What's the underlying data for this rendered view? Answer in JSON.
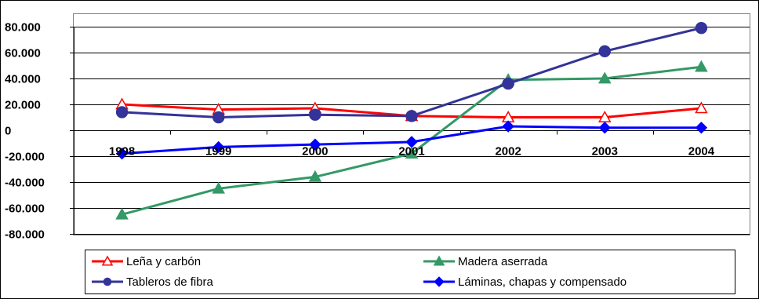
{
  "chart_data": {
    "type": "line",
    "title": "",
    "xlabel": "",
    "ylabel": "",
    "categories": [
      "1998",
      "1999",
      "2000",
      "2001",
      "2002",
      "2003",
      "2004"
    ],
    "ylim": [
      -80000,
      80000
    ],
    "y_ticks": [
      -80000,
      -60000,
      -40000,
      -20000,
      0,
      20000,
      40000,
      60000,
      80000
    ],
    "y_tick_labels": [
      "-80.000",
      "-60.000",
      "-40.000",
      "-20.000",
      "0",
      "20.000",
      "40.000",
      "60.000",
      "80.000"
    ],
    "grid": "horizontal",
    "legend_position": "bottom",
    "series": [
      {
        "name": "Leña y carbón",
        "color": "#ff0000",
        "marker": "triangle-open",
        "values": [
          20000,
          16000,
          17000,
          11000,
          10000,
          10000,
          17000
        ]
      },
      {
        "name": "Madera aserrada",
        "color": "#339966",
        "marker": "triangle-filled",
        "values": [
          -65000,
          -45000,
          -36000,
          -18000,
          39000,
          40000,
          49000
        ]
      },
      {
        "name": "Tableros de fibra",
        "color": "#333399",
        "marker": "circle",
        "values": [
          14000,
          10000,
          12000,
          11000,
          36000,
          61000,
          79000
        ]
      },
      {
        "name": "Láminas, chapas y compensado",
        "color": "#0000ff",
        "marker": "diamond",
        "values": [
          -18000,
          -13000,
          -11000,
          -9000,
          3000,
          2000,
          2000
        ]
      }
    ]
  }
}
